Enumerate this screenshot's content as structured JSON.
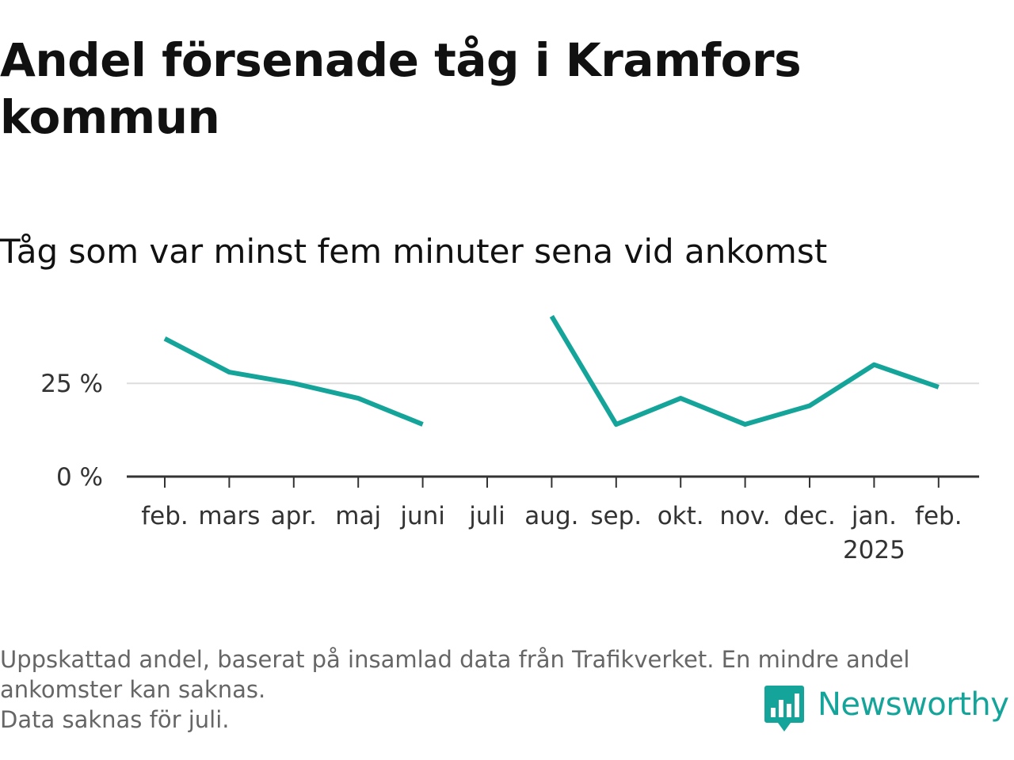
{
  "title": "Andel försenade tåg i Kramfors kommun",
  "subtitle": "Tåg som var minst fem minuter sena vid ankomst",
  "colors": {
    "line": "#15a49a",
    "grid": "#dddddd",
    "axis": "#333333",
    "text": "#111111",
    "footnote": "#666666"
  },
  "chart_data": {
    "type": "line",
    "title": "Andel försenade tåg i Kramfors kommun",
    "subtitle": "Tåg som var minst fem minuter sena vid ankomst",
    "categories": [
      "feb.",
      "mars",
      "apr.",
      "maj",
      "juni",
      "juli",
      "aug.",
      "sep.",
      "okt.",
      "nov.",
      "dec.",
      "jan.",
      "feb."
    ],
    "category_sublabels": [
      "",
      "",
      "",
      "",
      "",
      "",
      "",
      "",
      "",
      "",
      "",
      "2025",
      ""
    ],
    "values": [
      37,
      28,
      25,
      21,
      14,
      null,
      43,
      14,
      21,
      14,
      19,
      30,
      24
    ],
    "ylim": [
      0,
      45
    ],
    "yticks": [
      0,
      25
    ],
    "ytick_labels": [
      "0 %",
      "25 %"
    ],
    "grid": true,
    "xlabel": "",
    "ylabel": ""
  },
  "footnotes": [
    "Uppskattad andel, baserat på insamlad data från Trafikverket. En mindre andel ankomster kan saknas.",
    "Data saknas för juli."
  ],
  "brand": {
    "name": "Newsworthy",
    "logo_icon": "newsworthy-chart-badge-icon"
  }
}
